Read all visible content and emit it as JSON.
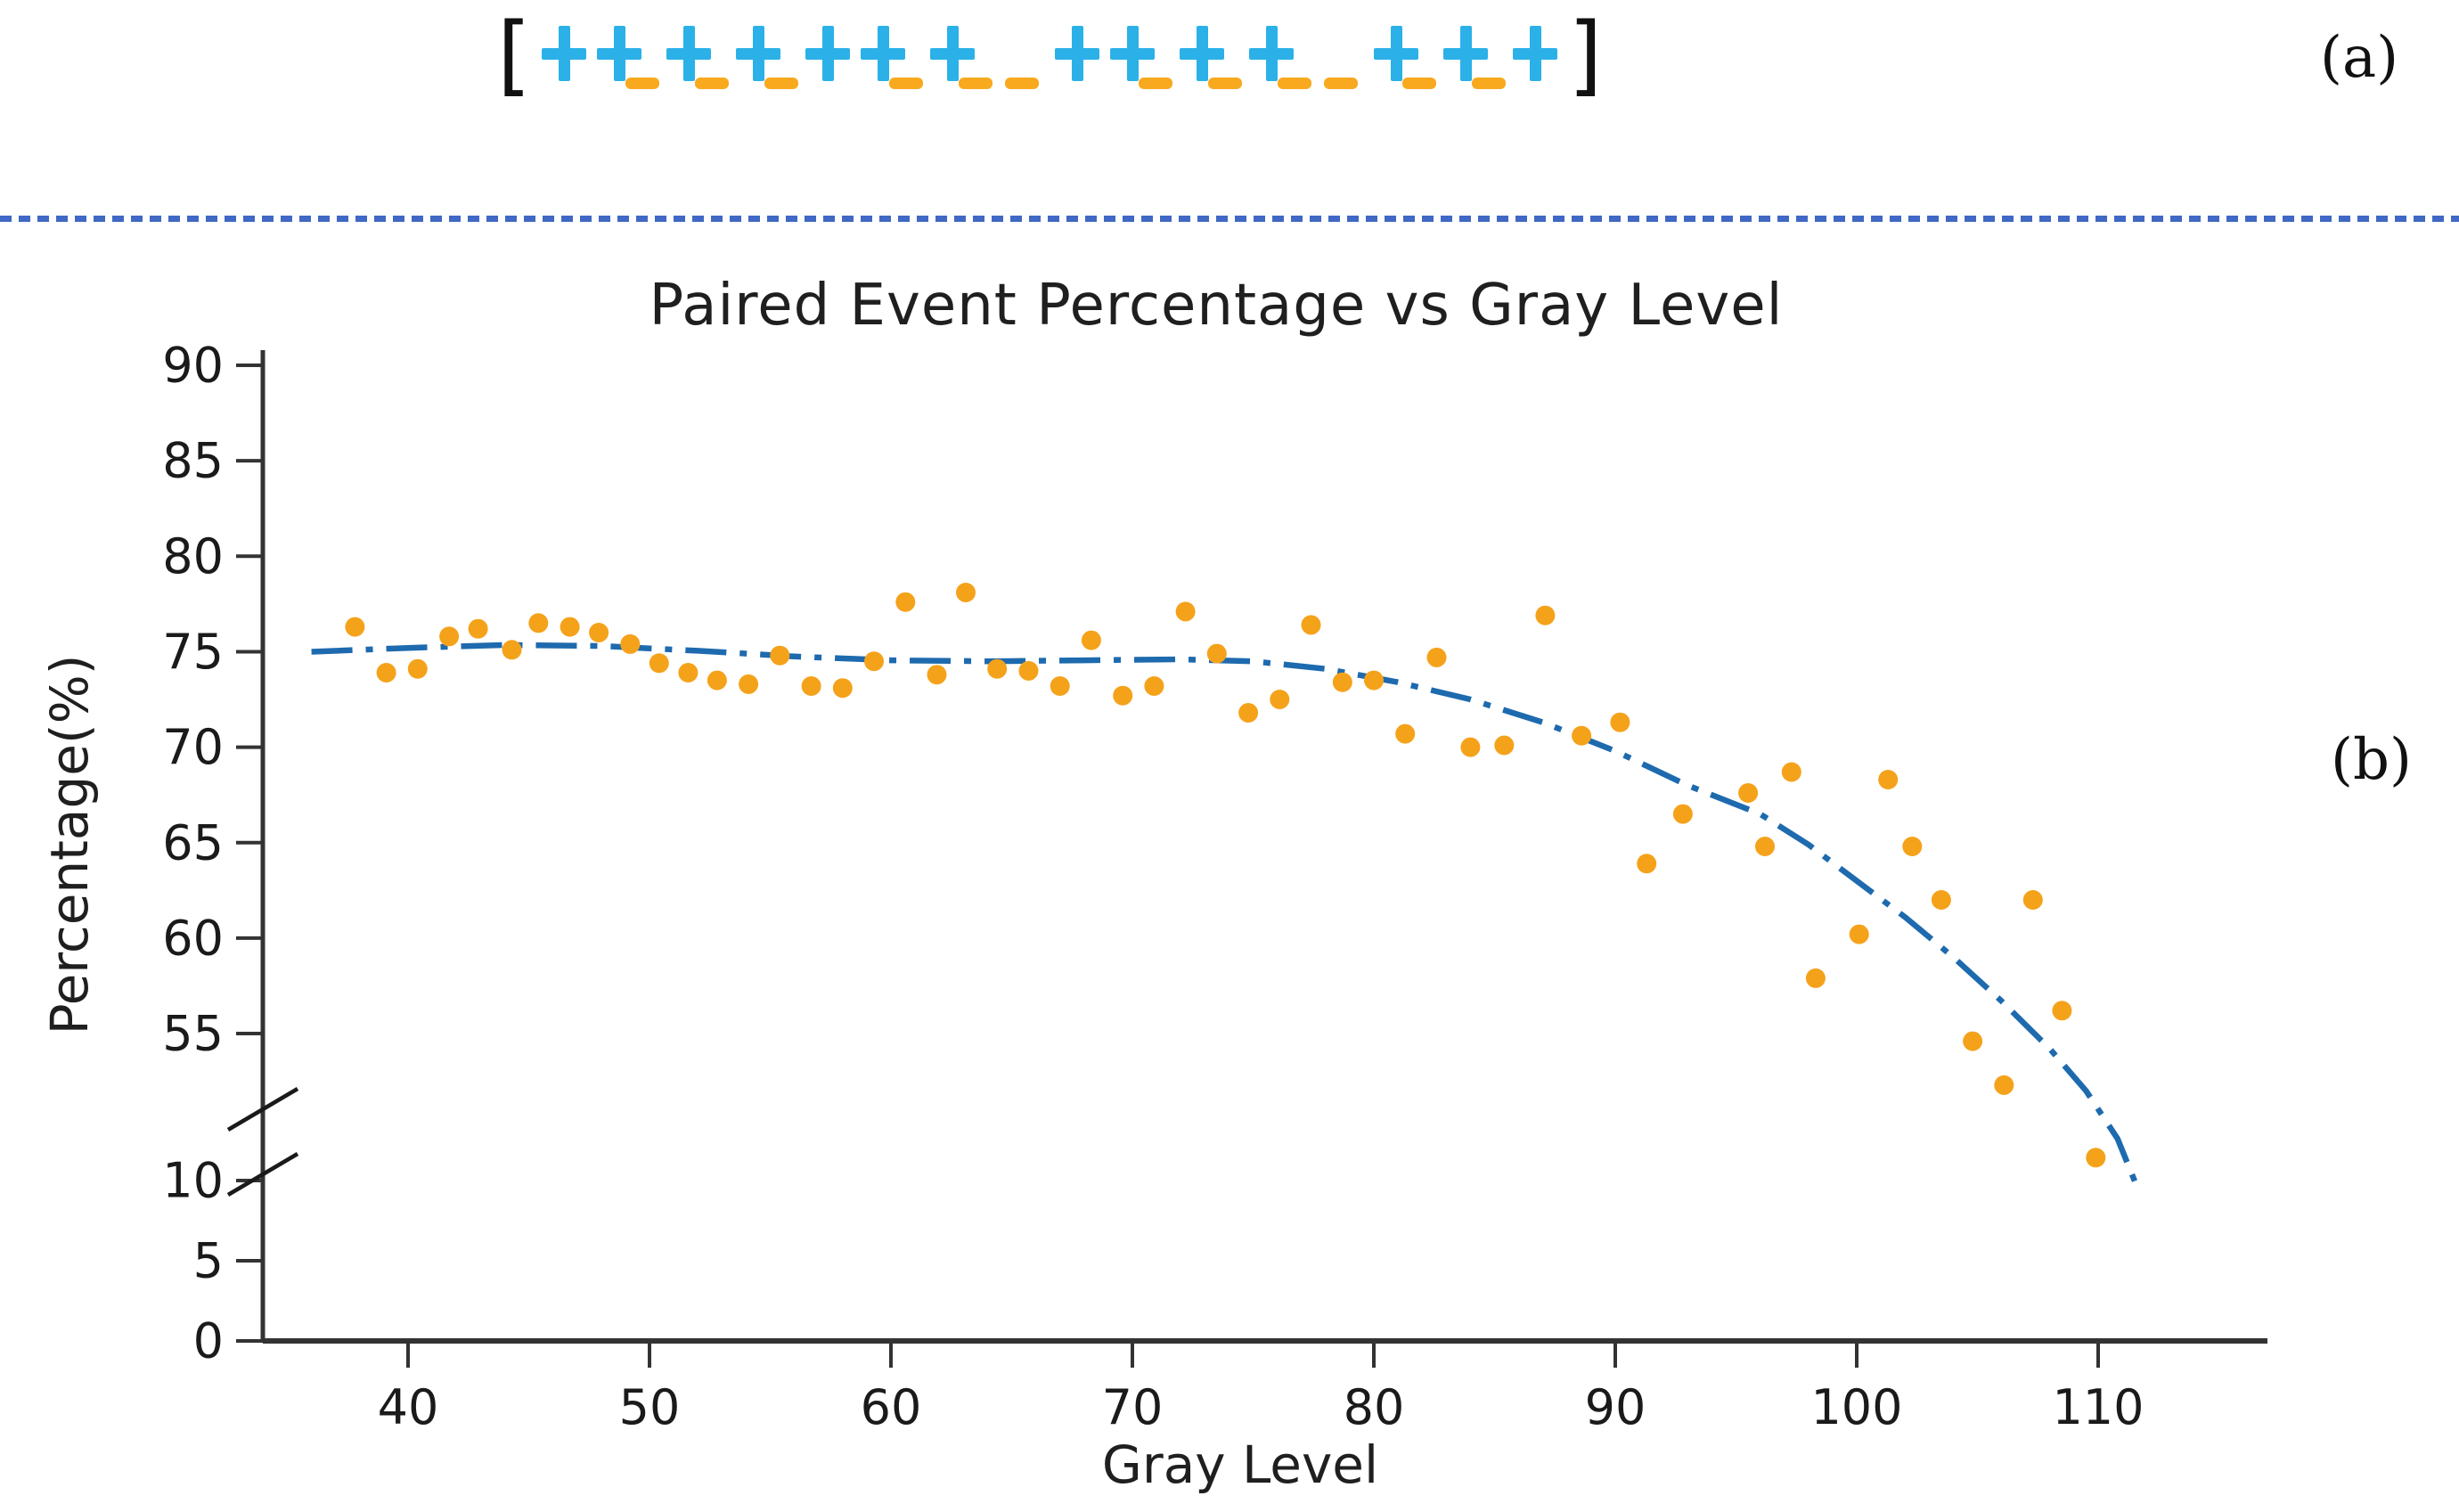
{
  "figure": {
    "label_a": "(a)",
    "label_b": "(b)"
  },
  "sequence_panel": {
    "open_bracket": "[",
    "close_bracket": "]",
    "tokens": [
      {
        "type": "plus"
      },
      {
        "type": "plus"
      },
      {
        "type": "dash",
        "mode": "attached"
      },
      {
        "type": "plus"
      },
      {
        "type": "dash",
        "mode": "attached"
      },
      {
        "type": "plus"
      },
      {
        "type": "dash",
        "mode": "attached"
      },
      {
        "type": "plus"
      },
      {
        "type": "plus"
      },
      {
        "type": "dash",
        "mode": "attached"
      },
      {
        "type": "plus"
      },
      {
        "type": "dash",
        "mode": "attached"
      },
      {
        "type": "dash",
        "mode": "solo"
      },
      {
        "type": "plus"
      },
      {
        "type": "plus"
      },
      {
        "type": "dash",
        "mode": "attached"
      },
      {
        "type": "plus"
      },
      {
        "type": "dash",
        "mode": "attached"
      },
      {
        "type": "plus"
      },
      {
        "type": "dash",
        "mode": "attached"
      },
      {
        "type": "dash",
        "mode": "solo"
      },
      {
        "type": "plus"
      },
      {
        "type": "dash",
        "mode": "attached"
      },
      {
        "type": "plus"
      },
      {
        "type": "dash",
        "mode": "attached"
      },
      {
        "type": "plus"
      }
    ]
  },
  "colors": {
    "plus-cyan": "#2BB1E8",
    "dash-orange": "#F8A91E",
    "dot-orange": "#F5A21B",
    "trend-blue": "#1E6AAE",
    "divider-blue": "#4068C4",
    "axis-dark": "#333333"
  },
  "chart_data": {
    "type": "scatter",
    "title": "Paired Event Percentage vs Gray Level",
    "xlabel": "Gray Level",
    "ylabel": "Percentage(%)",
    "x_ticks": [
      40,
      50,
      60,
      70,
      80,
      90,
      100,
      110
    ],
    "y_ticks_upper": [
      90,
      85,
      80,
      75,
      70,
      65,
      60,
      55
    ],
    "y_ticks_lower": [
      10,
      5,
      0
    ],
    "axis_break": true,
    "xlim": [
      34,
      117
    ],
    "ylim_upper": [
      51,
      91
    ],
    "ylim_lower": [
      0,
      10.5
    ],
    "grid": false,
    "legend": "none",
    "series": [
      {
        "name": "paired-event-percentage",
        "type": "scatter",
        "points": [
          [
            37.8,
            76.3
          ],
          [
            39.1,
            73.9
          ],
          [
            40.4,
            74.1
          ],
          [
            41.7,
            75.8
          ],
          [
            42.9,
            76.2
          ],
          [
            44.3,
            75.1
          ],
          [
            45.4,
            76.5
          ],
          [
            46.7,
            76.3
          ],
          [
            47.9,
            76.0
          ],
          [
            49.2,
            75.4
          ],
          [
            50.4,
            74.4
          ],
          [
            51.6,
            73.9
          ],
          [
            52.8,
            73.5
          ],
          [
            54.1,
            73.3
          ],
          [
            55.4,
            74.8
          ],
          [
            56.7,
            73.2
          ],
          [
            58.0,
            73.1
          ],
          [
            59.3,
            74.5
          ],
          [
            60.6,
            77.6
          ],
          [
            61.9,
            73.8
          ],
          [
            63.1,
            78.1
          ],
          [
            64.4,
            74.1
          ],
          [
            65.7,
            74.0
          ],
          [
            67.0,
            73.2
          ],
          [
            68.3,
            75.6
          ],
          [
            69.6,
            72.7
          ],
          [
            70.9,
            73.2
          ],
          [
            72.2,
            77.1
          ],
          [
            73.5,
            74.9
          ],
          [
            74.8,
            71.8
          ],
          [
            76.1,
            72.5
          ],
          [
            77.4,
            76.4
          ],
          [
            78.7,
            73.4
          ],
          [
            80.0,
            73.5
          ],
          [
            81.3,
            70.7
          ],
          [
            82.6,
            74.7
          ],
          [
            84.0,
            70.0
          ],
          [
            85.4,
            70.1
          ],
          [
            87.1,
            76.9
          ],
          [
            88.6,
            70.6
          ],
          [
            90.2,
            71.3
          ],
          [
            91.3,
            63.9
          ],
          [
            92.8,
            66.5
          ],
          [
            95.5,
            67.6
          ],
          [
            96.2,
            64.8
          ],
          [
            97.3,
            68.7
          ],
          [
            98.3,
            57.9
          ],
          [
            100.1,
            60.2
          ],
          [
            101.3,
            68.3
          ],
          [
            102.3,
            64.8
          ],
          [
            103.5,
            62.0
          ],
          [
            104.8,
            54.6
          ],
          [
            106.1,
            52.3
          ],
          [
            107.3,
            62.0
          ],
          [
            108.5,
            56.2
          ],
          [
            109.9,
            48.5
          ]
        ]
      },
      {
        "name": "polynomial-trend",
        "type": "line",
        "style": "dash-dot",
        "points": [
          [
            36,
            75.0
          ],
          [
            40,
            75.2
          ],
          [
            44,
            75.35
          ],
          [
            48,
            75.3
          ],
          [
            52,
            75.05
          ],
          [
            56,
            74.75
          ],
          [
            60,
            74.55
          ],
          [
            64,
            74.5
          ],
          [
            68,
            74.55
          ],
          [
            72,
            74.6
          ],
          [
            75,
            74.5
          ],
          [
            78,
            74.1
          ],
          [
            81,
            73.4
          ],
          [
            84,
            72.5
          ],
          [
            87,
            71.3
          ],
          [
            90,
            69.8
          ],
          [
            93,
            68.0
          ],
          [
            96,
            66.5
          ],
          [
            98,
            64.9
          ],
          [
            100,
            63.0
          ],
          [
            102,
            61.1
          ],
          [
            104,
            59.0
          ],
          [
            106,
            56.7
          ],
          [
            108,
            54.2
          ],
          [
            109.5,
            52.0
          ],
          [
            110.8,
            49.5
          ],
          [
            111.6,
            47.0
          ]
        ]
      }
    ]
  }
}
